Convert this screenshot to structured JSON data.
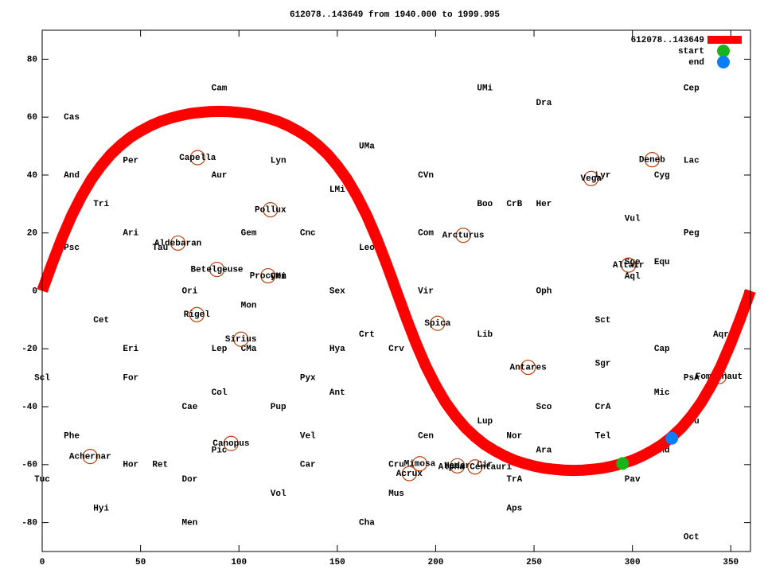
{
  "chart_data": {
    "type": "line",
    "title": "612078..143649 from 1940.000 to 1999.995",
    "xlim": [
      0,
      360
    ],
    "ylim": [
      -90,
      90
    ],
    "xticks": [
      0,
      50,
      100,
      150,
      200,
      250,
      300,
      350
    ],
    "yticks": [
      -80,
      -60,
      -40,
      -20,
      0,
      20,
      40,
      60,
      80
    ],
    "x": [
      0,
      5,
      10,
      15,
      20,
      25,
      30,
      35,
      40,
      45,
      50,
      55,
      60,
      65,
      70,
      75,
      80,
      85,
      90,
      95,
      100,
      105,
      110,
      115,
      120,
      125,
      130,
      135,
      140,
      145,
      150,
      155,
      160,
      165,
      170,
      175,
      180,
      185,
      190,
      195,
      200,
      205,
      210,
      215,
      220,
      225,
      230,
      235,
      240,
      245,
      250,
      255,
      260,
      265,
      270,
      275,
      280,
      285,
      290,
      295,
      300,
      305,
      310,
      315,
      320,
      325,
      330,
      335,
      340,
      345,
      350,
      355,
      360
    ],
    "series": [
      {
        "name": "612078..143649",
        "color": "#ff0000",
        "values": [
          0,
          9.3,
          18.1,
          26.0,
          32.7,
          38.5,
          43.2,
          47.2,
          50.4,
          53.1,
          55.2,
          57.0,
          58.5,
          59.6,
          60.5,
          61.2,
          61.6,
          61.9,
          62.0,
          61.9,
          61.6,
          61.2,
          60.5,
          59.6,
          58.5,
          57.0,
          55.2,
          53.1,
          50.4,
          47.2,
          43.2,
          38.5,
          32.7,
          26.0,
          18.1,
          9.3,
          0,
          -9.3,
          -18.1,
          -26.0,
          -32.7,
          -38.5,
          -43.2,
          -47.2,
          -50.4,
          -53.1,
          -55.2,
          -57.0,
          -58.5,
          -59.6,
          -60.5,
          -61.2,
          -61.6,
          -61.9,
          -62.0,
          -61.9,
          -61.6,
          -61.2,
          -60.5,
          -59.6,
          -58.5,
          -57.0,
          -55.2,
          -53.1,
          -50.4,
          -47.2,
          -43.2,
          -38.5,
          -32.7,
          -26.0,
          -18.1,
          -9.3,
          0
        ]
      }
    ],
    "points": [
      {
        "name": "start",
        "color": "#19b419",
        "x": 295,
        "y": -59.6
      },
      {
        "name": "end",
        "color": "#0a7ff5",
        "x": 320,
        "y": -50.9
      }
    ],
    "star_color": "#b8400a",
    "stars": [
      {
        "name": "Capella",
        "x": 79,
        "y": 46
      },
      {
        "name": "Deneb",
        "x": 310,
        "y": 45.3
      },
      {
        "name": "Vega",
        "x": 279,
        "y": 38.8
      },
      {
        "name": "Pollux",
        "x": 116,
        "y": 28
      },
      {
        "name": "Arcturus",
        "x": 214,
        "y": 19.2
      },
      {
        "name": "Aldebaran",
        "x": 69,
        "y": 16.5
      },
      {
        "name": "Altair",
        "x": 298,
        "y": 8.9
      },
      {
        "name": "Betelgeuse",
        "x": 88.8,
        "y": 7.4
      },
      {
        "name": "Procyon",
        "x": 114.8,
        "y": 5.2
      },
      {
        "name": "Rigel",
        "x": 78.6,
        "y": -8.2
      },
      {
        "name": "Spica",
        "x": 201,
        "y": -11.2
      },
      {
        "name": "Sirius",
        "x": 101,
        "y": -16.7
      },
      {
        "name": "Antares",
        "x": 247,
        "y": -26.4
      },
      {
        "name": "Fomalhaut",
        "x": 344,
        "y": -29.6
      },
      {
        "name": "Canopus",
        "x": 96,
        "y": -52.7
      },
      {
        "name": "Achernar",
        "x": 24.4,
        "y": -57.2
      },
      {
        "name": "Mimosa",
        "x": 191.9,
        "y": -59.7
      },
      {
        "name": "Hadar",
        "x": 211,
        "y": -60.4
      },
      {
        "name": "Alpha Centauri",
        "x": 220,
        "y": -60.8
      },
      {
        "name": "Acrux",
        "x": 186.6,
        "y": -63.1
      }
    ],
    "labels": [
      {
        "text": "Cam",
        "x": 90,
        "y": 70
      },
      {
        "text": "UMi",
        "x": 225,
        "y": 70
      },
      {
        "text": "Cep",
        "x": 330,
        "y": 70
      },
      {
        "text": "Dra",
        "x": 255,
        "y": 65
      },
      {
        "text": "Cas",
        "x": 15,
        "y": 60
      },
      {
        "text": "Per",
        "x": 45,
        "y": 45
      },
      {
        "text": "UMa",
        "x": 165,
        "y": 50
      },
      {
        "text": "Lyn",
        "x": 120,
        "y": 45
      },
      {
        "text": "And",
        "x": 15,
        "y": 40
      },
      {
        "text": "Aur",
        "x": 90,
        "y": 40
      },
      {
        "text": "CVn",
        "x": 195,
        "y": 40
      },
      {
        "text": "Lyr",
        "x": 285,
        "y": 40
      },
      {
        "text": "Cyg",
        "x": 315,
        "y": 40
      },
      {
        "text": "Lac",
        "x": 330,
        "y": 45
      },
      {
        "text": "LMi",
        "x": 150,
        "y": 35
      },
      {
        "text": "Tri",
        "x": 30,
        "y": 30
      },
      {
        "text": "Boo",
        "x": 225,
        "y": 30
      },
      {
        "text": "CrB",
        "x": 240,
        "y": 30
      },
      {
        "text": "Her",
        "x": 255,
        "y": 30
      },
      {
        "text": "Vul",
        "x": 300,
        "y": 25
      },
      {
        "text": "Ari",
        "x": 45,
        "y": 20
      },
      {
        "text": "Gem",
        "x": 105,
        "y": 20
      },
      {
        "text": "Cnc",
        "x": 135,
        "y": 20
      },
      {
        "text": "Com",
        "x": 195,
        "y": 20
      },
      {
        "text": "Peg",
        "x": 330,
        "y": 20
      },
      {
        "text": "Psc",
        "x": 15,
        "y": 15
      },
      {
        "text": "Tau",
        "x": 60,
        "y": 15
      },
      {
        "text": "Leo",
        "x": 165,
        "y": 15
      },
      {
        "text": "Sge",
        "x": 300,
        "y": 10
      },
      {
        "text": "Equ",
        "x": 315,
        "y": 10
      },
      {
        "text": "CMi",
        "x": 120,
        "y": 5
      },
      {
        "text": "Aql",
        "x": 300,
        "y": 5
      },
      {
        "text": "Ori",
        "x": 75,
        "y": 0
      },
      {
        "text": "Sex",
        "x": 150,
        "y": 0
      },
      {
        "text": "Vir",
        "x": 195,
        "y": 0
      },
      {
        "text": "Oph",
        "x": 255,
        "y": 0
      },
      {
        "text": "Mon",
        "x": 105,
        "y": -5
      },
      {
        "text": "Cet",
        "x": 30,
        "y": -10
      },
      {
        "text": "Sct",
        "x": 285,
        "y": -10
      },
      {
        "text": "Crt",
        "x": 165,
        "y": -15
      },
      {
        "text": "Lib",
        "x": 225,
        "y": -15
      },
      {
        "text": "Aqr",
        "x": 345,
        "y": -15
      },
      {
        "text": "Eri",
        "x": 45,
        "y": -20
      },
      {
        "text": "Lep",
        "x": 90,
        "y": -20
      },
      {
        "text": "CMa",
        "x": 105,
        "y": -20
      },
      {
        "text": "Hya",
        "x": 150,
        "y": -20
      },
      {
        "text": "Crv",
        "x": 180,
        "y": -20
      },
      {
        "text": "Cap",
        "x": 315,
        "y": -20
      },
      {
        "text": "Sgr",
        "x": 285,
        "y": -25
      },
      {
        "text": "Scl",
        "x": 0,
        "y": -30
      },
      {
        "text": "For",
        "x": 45,
        "y": -30
      },
      {
        "text": "Pyx",
        "x": 135,
        "y": -30
      },
      {
        "text": "PsA",
        "x": 330,
        "y": -30
      },
      {
        "text": "Col",
        "x": 90,
        "y": -35
      },
      {
        "text": "Ant",
        "x": 150,
        "y": -35
      },
      {
        "text": "Mic",
        "x": 315,
        "y": -35
      },
      {
        "text": "Cae",
        "x": 75,
        "y": -40
      },
      {
        "text": "Pup",
        "x": 120,
        "y": -40
      },
      {
        "text": "Sco",
        "x": 255,
        "y": -40
      },
      {
        "text": "CrA",
        "x": 285,
        "y": -40
      },
      {
        "text": "Lup",
        "x": 225,
        "y": -45
      },
      {
        "text": "Gru",
        "x": 330,
        "y": -45
      },
      {
        "text": "Phe",
        "x": 15,
        "y": -50
      },
      {
        "text": "Vel",
        "x": 135,
        "y": -50
      },
      {
        "text": "Cen",
        "x": 195,
        "y": -50
      },
      {
        "text": "Nor",
        "x": 240,
        "y": -50
      },
      {
        "text": "Tel",
        "x": 285,
        "y": -50
      },
      {
        "text": "Pic",
        "x": 90,
        "y": -55
      },
      {
        "text": "Ara",
        "x": 255,
        "y": -55
      },
      {
        "text": "Ind",
        "x": 315,
        "y": -55
      },
      {
        "text": "Hor",
        "x": 45,
        "y": -60
      },
      {
        "text": "Ret",
        "x": 60,
        "y": -60
      },
      {
        "text": "Car",
        "x": 135,
        "y": -60
      },
      {
        "text": "Cru",
        "x": 180,
        "y": -60
      },
      {
        "text": "Cir",
        "x": 225,
        "y": -60
      },
      {
        "text": "Tuc",
        "x": 0,
        "y": -65
      },
      {
        "text": "Dor",
        "x": 75,
        "y": -65
      },
      {
        "text": "TrA",
        "x": 240,
        "y": -65
      },
      {
        "text": "Pav",
        "x": 300,
        "y": -65
      },
      {
        "text": "Vol",
        "x": 120,
        "y": -70
      },
      {
        "text": "Mus",
        "x": 180,
        "y": -70
      },
      {
        "text": "Hyi",
        "x": 30,
        "y": -75
      },
      {
        "text": "Aps",
        "x": 240,
        "y": -75
      },
      {
        "text": "Men",
        "x": 75,
        "y": -80
      },
      {
        "text": "Cha",
        "x": 165,
        "y": -80
      },
      {
        "text": "Oct",
        "x": 330,
        "y": -85
      }
    ]
  }
}
